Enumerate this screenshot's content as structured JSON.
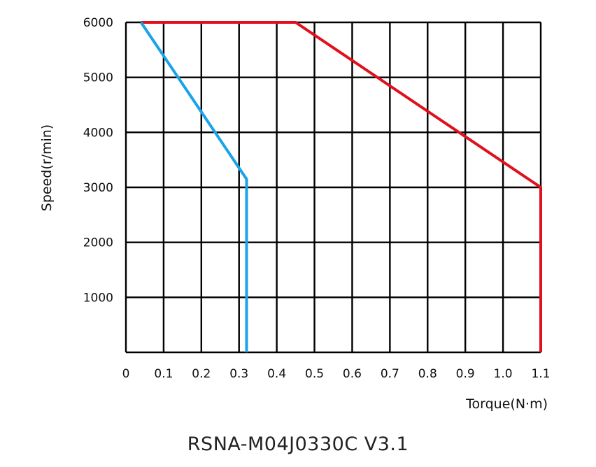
{
  "chart_data": {
    "type": "line",
    "title": "",
    "xlabel": "Torque(N·m)",
    "ylabel": "Speed(r/min)",
    "xlim": [
      0,
      1.1
    ],
    "ylim": [
      0,
      6000
    ],
    "x_ticks": [
      "0",
      "0.1",
      "0.2",
      "0.3",
      "0.4",
      "0.5",
      "0.6",
      "0.7",
      "0.8",
      "0.9",
      "1.0",
      "1.1"
    ],
    "y_ticks": [
      "1000",
      "2000",
      "3000",
      "4000",
      "5000",
      "6000"
    ],
    "grid": true,
    "series": [
      {
        "color": "#e0101c",
        "x": [
          0.04,
          0.45,
          1.1,
          1.1
        ],
        "y": [
          6000,
          6000,
          3000,
          0
        ]
      },
      {
        "color": "#1aa3e8",
        "x": [
          0.04,
          0.32,
          0.32
        ],
        "y": [
          6000,
          3150,
          0
        ]
      }
    ]
  },
  "caption": "RSNA-M04J0330C V3.1"
}
